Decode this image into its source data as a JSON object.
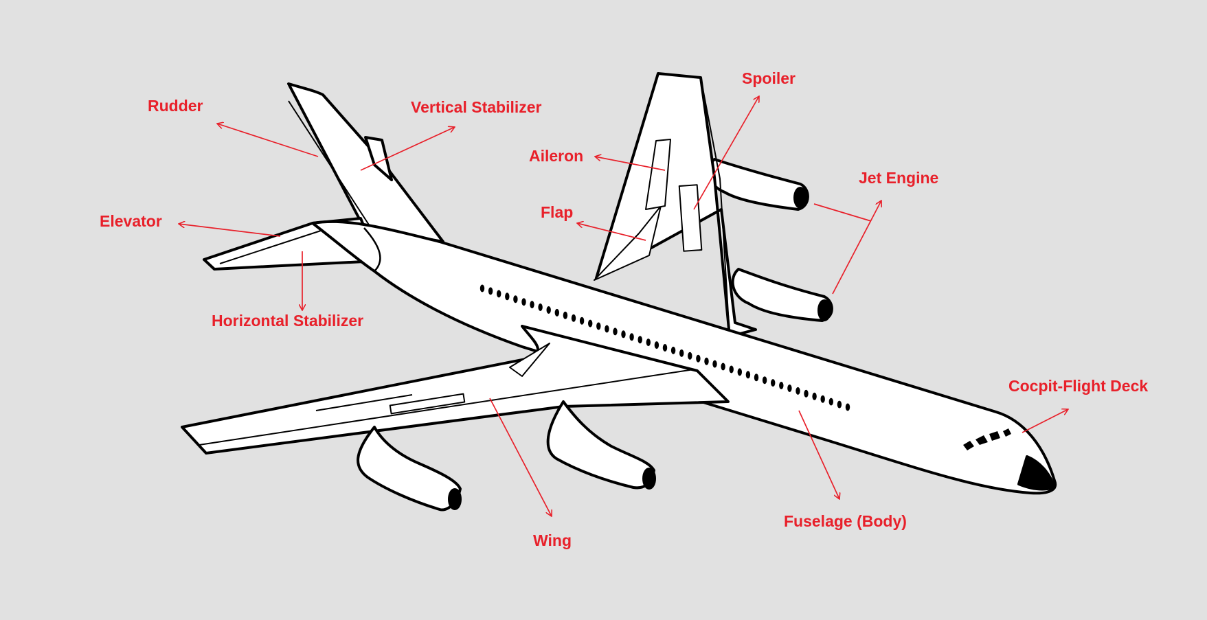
{
  "colors": {
    "background": "#e1e1e1",
    "label": "#e8202a",
    "outline": "#000000",
    "fill": "#ffffff"
  },
  "labels": {
    "rudder": "Rudder",
    "vertical_stabilizer": "Vertical Stabilizer",
    "elevator": "Elevator",
    "horizontal_stabilizer": "Horizontal Stabilizer",
    "aileron": "Aileron",
    "flap": "Flap",
    "spoiler": "Spoiler",
    "jet_engine": "Jet Engine",
    "cockpit": "Cocpit-Flight Deck",
    "fuselage": "Fuselage (Body)",
    "wing": "Wing"
  }
}
